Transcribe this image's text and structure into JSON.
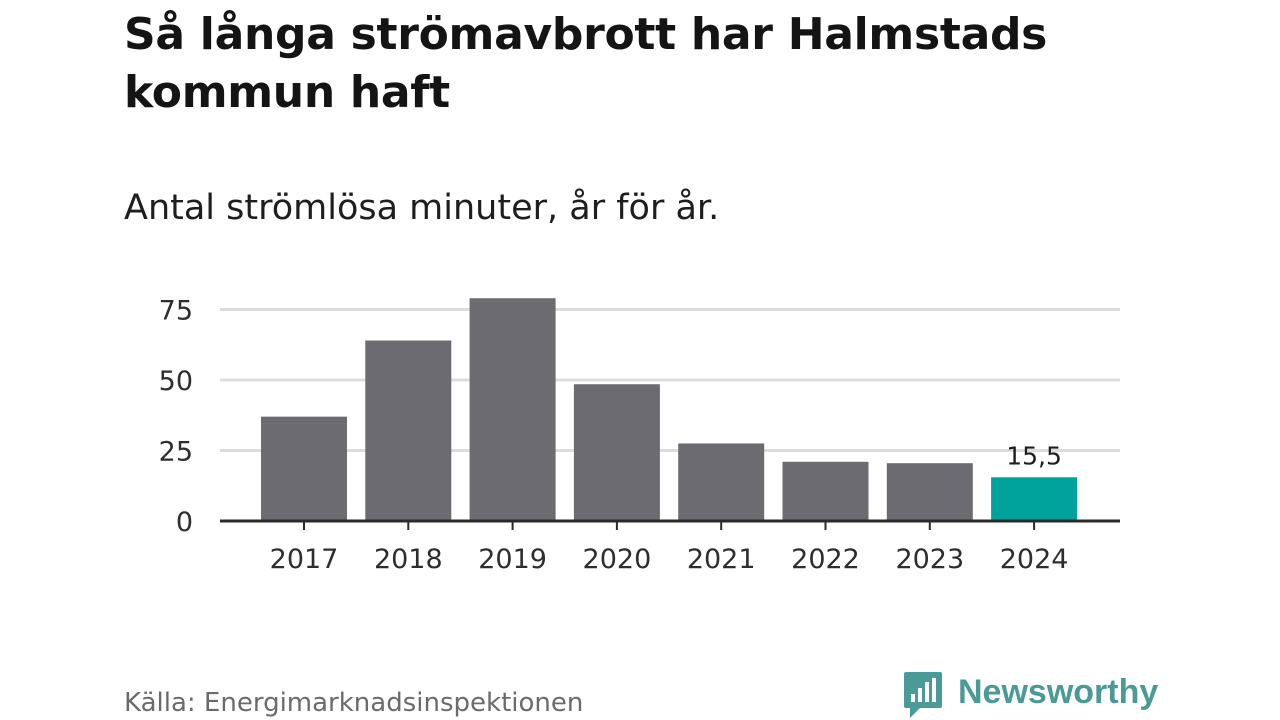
{
  "header": {
    "title": "Så långa strömavbrott har Halmstads kommun haft",
    "subtitle": "Antal strömlösa minuter, år för år."
  },
  "footer": {
    "source": "Källa: Energimarknadsinspektionen",
    "brand": "Newsworthy"
  },
  "colors": {
    "bar": "#6c6b71",
    "highlight": "#00a39b",
    "grid": "#dcdcdc",
    "axis": "#2a2a2a",
    "brand": "#4a9a98"
  },
  "chart_data": {
    "type": "bar",
    "title": "Så långa strömavbrott har Halmstads kommun haft",
    "subtitle": "Antal strömlösa minuter, år för år.",
    "xlabel": "",
    "ylabel": "",
    "categories": [
      "2017",
      "2018",
      "2019",
      "2020",
      "2021",
      "2022",
      "2023",
      "2024"
    ],
    "values": [
      37,
      64,
      79,
      48.5,
      27.5,
      21,
      20.5,
      15.5
    ],
    "ylim": [
      0,
      80
    ],
    "yticks": [
      0,
      25,
      50,
      75
    ],
    "grid": true,
    "highlight_index": 7,
    "data_labels": [
      {
        "index": 7,
        "text": "15,5"
      }
    ]
  }
}
